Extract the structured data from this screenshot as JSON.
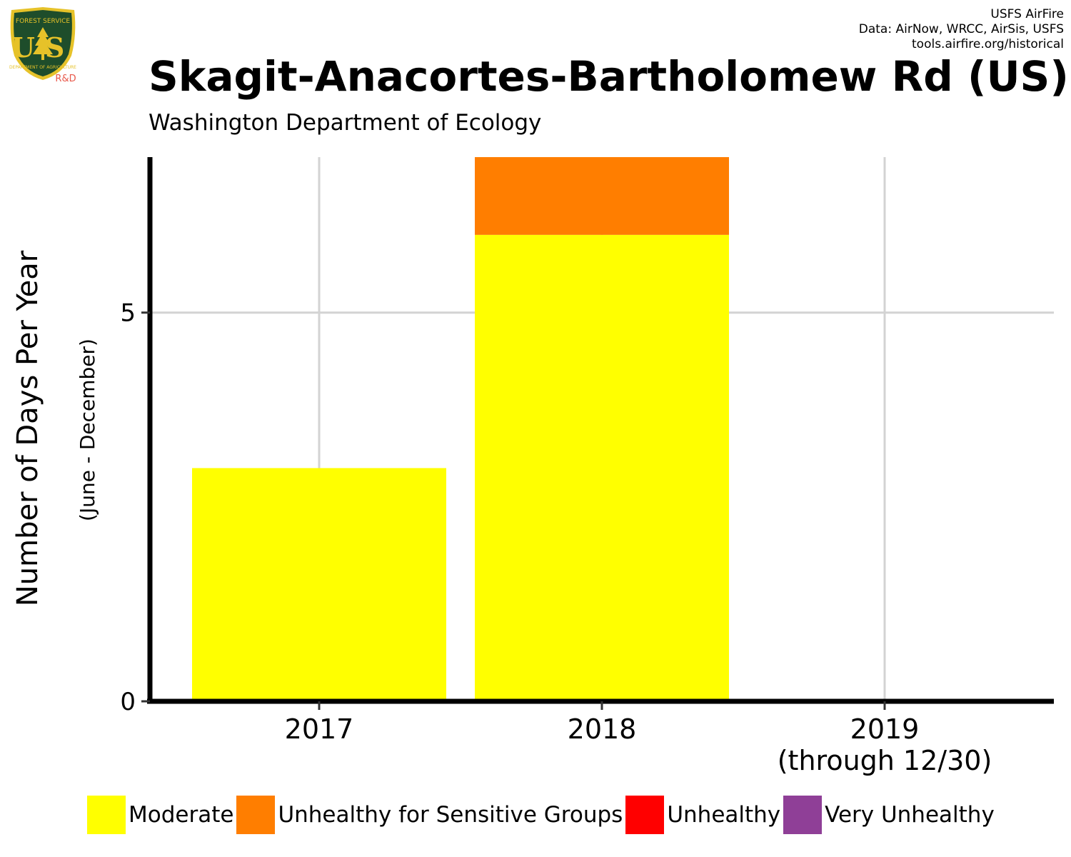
{
  "header": {
    "title": "Skagit-Anacortes-Bartholomew Rd (US)",
    "subtitle": "Washington Department of Ecology",
    "credits": [
      "USFS AirFire",
      "Data: AirNow, WRCC, AirSis, USFS",
      "tools.airfire.org/historical"
    ]
  },
  "logo": {
    "top_text": "FOREST SERVICE",
    "letters": "US",
    "bottom_text": "DEPARTMENT OF AGRICULTURE",
    "tag": "R&D",
    "colors": {
      "shield": "#1e4d2b",
      "trim": "#e6c229",
      "tag": "#e8584a"
    }
  },
  "chart_data": {
    "type": "bar",
    "stacked": true,
    "categories": [
      "2017",
      "2018",
      "2019"
    ],
    "category_sublabels": [
      "",
      "",
      "(through 12/30)"
    ],
    "series": [
      {
        "name": "Moderate",
        "color": "#ffff00",
        "values": [
          3,
          6,
          0
        ]
      },
      {
        "name": "Unhealthy for Sensitive Groups",
        "color": "#ff7e00",
        "values": [
          0,
          1,
          0
        ]
      },
      {
        "name": "Unhealthy",
        "color": "#ff0000",
        "values": [
          0,
          0,
          0
        ]
      },
      {
        "name": "Very Unhealthy",
        "color": "#8f3f97",
        "values": [
          0,
          0,
          0
        ]
      }
    ],
    "ylabel": "Number of Days Per Year",
    "ylabel_sub": "(June - December)",
    "yticks": [
      0,
      5
    ],
    "ylim": [
      0,
      7
    ],
    "grid": true,
    "legend_position": "bottom"
  }
}
